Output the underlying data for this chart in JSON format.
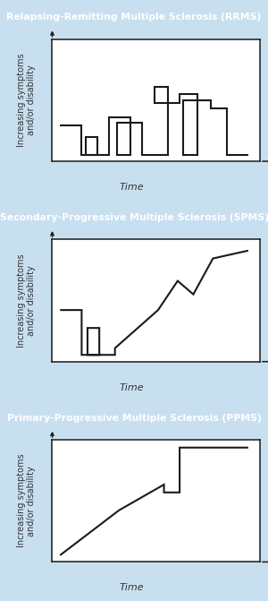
{
  "panels": [
    {
      "title": "Relapsing-Remitting Multiple Sclerosis (RRMS)",
      "ylabel": "Increasing symptoms\nand/or disability",
      "xlabel": "Time",
      "line_color": "#1a1a1a",
      "line_width": 1.5,
      "x": [
        0.02,
        0.13,
        0.13,
        0.21,
        0.21,
        0.15,
        0.15,
        0.27,
        0.27,
        0.38,
        0.38,
        0.31,
        0.31,
        0.44,
        0.44,
        0.57,
        0.57,
        0.5,
        0.5,
        0.63,
        0.63,
        0.72,
        0.72,
        0.65,
        0.65,
        0.79,
        0.79,
        0.87,
        0.87,
        0.98
      ],
      "y": [
        0.28,
        0.28,
        0.02,
        0.02,
        0.18,
        0.18,
        0.02,
        0.02,
        0.35,
        0.35,
        0.02,
        0.02,
        0.3,
        0.3,
        0.02,
        0.02,
        0.62,
        0.62,
        0.48,
        0.48,
        0.56,
        0.56,
        0.02,
        0.02,
        0.5,
        0.5,
        0.43,
        0.43,
        0.02,
        0.02
      ]
    },
    {
      "title": "Secondary-Progressive Multiple Sclerosis (SPMS)",
      "ylabel": "Increasing symptoms\nand/or disability",
      "xlabel": "Time",
      "line_color": "#1a1a1a",
      "line_width": 1.5,
      "x": [
        0.02,
        0.13,
        0.13,
        0.22,
        0.22,
        0.16,
        0.16,
        0.3,
        0.3,
        0.52,
        0.52,
        0.62,
        0.62,
        0.7,
        0.7,
        0.8,
        0.8,
        0.98
      ],
      "y": [
        0.42,
        0.42,
        0.02,
        0.02,
        0.26,
        0.26,
        0.02,
        0.02,
        0.08,
        0.42,
        0.42,
        0.68,
        0.68,
        0.56,
        0.56,
        0.88,
        0.88,
        0.95
      ]
    },
    {
      "title": "Primary-Progressive Multiple Sclerosis (PPMS)",
      "ylabel": "Increasing symptoms\nand/or disability",
      "xlabel": "Time",
      "line_color": "#1a1a1a",
      "line_width": 1.5,
      "x": [
        0.02,
        0.32,
        0.32,
        0.55,
        0.55,
        0.63,
        0.63,
        0.98
      ],
      "y": [
        0.02,
        0.42,
        0.42,
        0.65,
        0.58,
        0.58,
        0.98,
        0.98
      ]
    }
  ],
  "header_bg_color": "#2472b0",
  "panel_bg_color": "#c8dff0",
  "chart_bg_color": "#ffffff",
  "header_text_color": "#ffffff",
  "axis_text_color": "#333333",
  "border_color": "#1a1a1a",
  "header_fontsize": 7.8,
  "ylabel_fontsize": 7.0,
  "xlabel_fontsize": 8.0,
  "figure_bg_color": "#c8dff0"
}
